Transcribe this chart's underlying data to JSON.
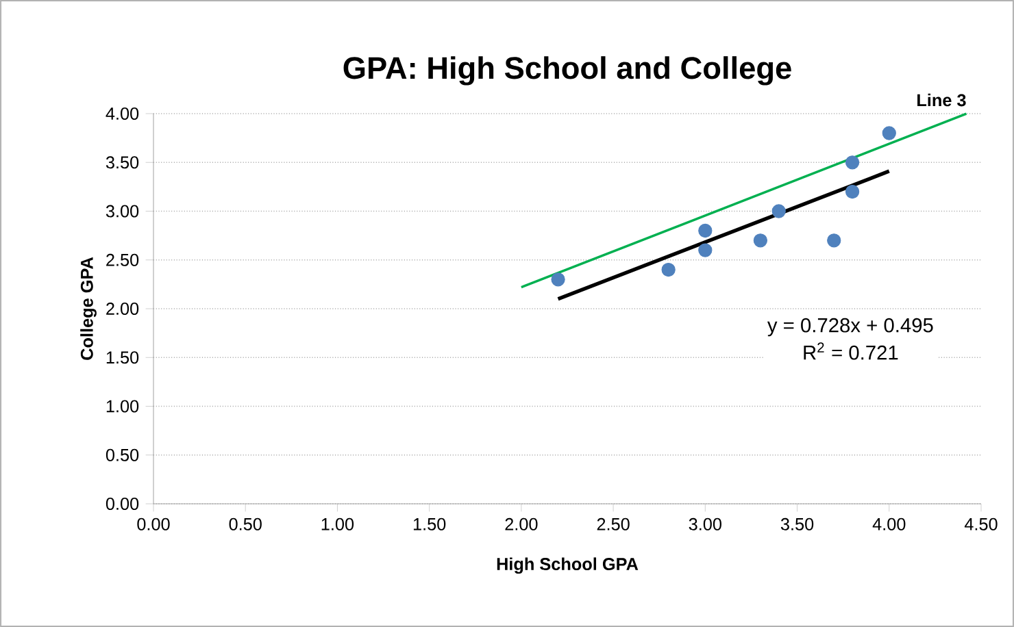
{
  "chart_data": {
    "type": "scatter",
    "title": "GPA: High School and College",
    "xlabel": "High School GPA",
    "ylabel": "College GPA",
    "xlim": [
      0,
      4.5
    ],
    "ylim": [
      0,
      4
    ],
    "xticks": [
      {
        "value": 0,
        "label": "0.00"
      },
      {
        "value": 0.5,
        "label": "0.50"
      },
      {
        "value": 1,
        "label": "1.00"
      },
      {
        "value": 1.5,
        "label": "1.50"
      },
      {
        "value": 2,
        "label": "2.00"
      },
      {
        "value": 2.5,
        "label": "2.50"
      },
      {
        "value": 3,
        "label": "3.00"
      },
      {
        "value": 3.5,
        "label": "3.50"
      },
      {
        "value": 4,
        "label": "4.00"
      },
      {
        "value": 4.5,
        "label": "4.50"
      }
    ],
    "yticks": [
      {
        "value": 0,
        "label": "0.00"
      },
      {
        "value": 0.5,
        "label": "0.50"
      },
      {
        "value": 1,
        "label": "1.00"
      },
      {
        "value": 1.5,
        "label": "1.50"
      },
      {
        "value": 2,
        "label": "2.00"
      },
      {
        "value": 2.5,
        "label": "2.50"
      },
      {
        "value": 3,
        "label": "3.00"
      },
      {
        "value": 3.5,
        "label": "3.50"
      },
      {
        "value": 4,
        "label": "4.00"
      }
    ],
    "grid": "y",
    "series": [
      {
        "marker": "circle",
        "color": "#4f81bd",
        "x": [
          2.2,
          2.8,
          3.0,
          3.0,
          3.3,
          3.4,
          3.7,
          3.8,
          3.8,
          4.0
        ],
        "values": [
          2.3,
          2.4,
          2.8,
          2.6,
          2.7,
          3.0,
          2.7,
          3.5,
          3.2,
          3.8
        ]
      },
      {
        "type": "line",
        "marker": "none",
        "color": "#000000",
        "x": [
          2.2,
          4.0
        ],
        "values": [
          2.1,
          3.41
        ]
      },
      {
        "type": "line",
        "marker": "none",
        "name": "Line 3",
        "color": "#00b050",
        "x": [
          2.0,
          4.42
        ],
        "values": [
          2.22,
          4.0
        ]
      }
    ],
    "annotations": [
      "y = 0.728x + 0.495",
      "R$^{2}$ = 0.721"
    ]
  }
}
